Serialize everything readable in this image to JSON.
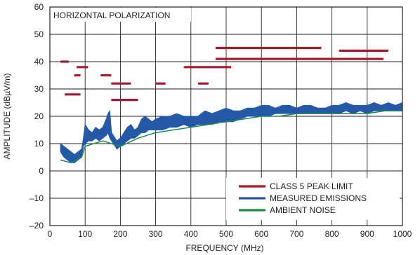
{
  "chart_data": {
    "type": "line",
    "title": "",
    "annotation": "HORIZONTAL POLARIZATION",
    "xlabel": "FREQUENCY (MHz)",
    "ylabel": "AMPLITUDE (dBµV/m)",
    "xlim": [
      0,
      1000
    ],
    "ylim": [
      -20,
      60
    ],
    "x_ticks": [
      0,
      100,
      200,
      300,
      400,
      500,
      600,
      700,
      800,
      900,
      1000
    ],
    "y_ticks": [
      -20,
      -10,
      0,
      10,
      20,
      30,
      40,
      50,
      60
    ],
    "x_tick_labels": [
      "0",
      "100",
      "200",
      "300",
      "400",
      "500",
      "600",
      "700",
      "800",
      "900",
      "1000"
    ],
    "y_tick_labels": [
      "–20",
      "–10",
      "0",
      "10",
      "20",
      "30",
      "40",
      "50",
      "60"
    ],
    "grid": true,
    "legend_position": "bottom-right",
    "colors": {
      "limit": "#a6192e",
      "emissions": "#2458a8",
      "noise": "#1e8a4a",
      "grid": "#231f20"
    },
    "legend": [
      {
        "label": "CLASS 5 PEAK LIMIT",
        "key": "limit"
      },
      {
        "label": "MEASURED EMISSIONS",
        "key": "emissions"
      },
      {
        "label": "AMBIENT NOISE",
        "key": "noise"
      }
    ],
    "limit_segments": [
      {
        "x": [
          30,
          54
        ],
        "y": 40
      },
      {
        "x": [
          42,
          87
        ],
        "y": 28
      },
      {
        "x": [
          69,
          87
        ],
        "y": 35
      },
      {
        "x": [
          76,
          108
        ],
        "y": 38
      },
      {
        "x": [
          144,
          174
        ],
        "y": 35
      },
      {
        "x": [
          174,
          230
        ],
        "y": 32
      },
      {
        "x": [
          174,
          250
        ],
        "y": 26
      },
      {
        "x": [
          300,
          328
        ],
        "y": 32
      },
      {
        "x": [
          380,
          514
        ],
        "y": 38
      },
      {
        "x": [
          420,
          450
        ],
        "y": 32
      },
      {
        "x": [
          470,
          770
        ],
        "y": 45
      },
      {
        "x": [
          470,
          946
        ],
        "y": 41
      },
      {
        "x": [
          820,
          960
        ],
        "y": 44
      }
    ],
    "emissions": {
      "x": [
        30,
        40,
        50,
        60,
        70,
        80,
        90,
        95,
        100,
        110,
        120,
        130,
        140,
        150,
        160,
        165,
        170,
        175,
        180,
        190,
        200,
        210,
        220,
        230,
        240,
        250,
        260,
        270,
        280,
        290,
        300,
        320,
        340,
        360,
        380,
        400,
        420,
        440,
        460,
        480,
        500,
        520,
        540,
        560,
        580,
        600,
        620,
        640,
        660,
        680,
        700,
        720,
        740,
        760,
        780,
        800,
        820,
        840,
        860,
        880,
        900,
        920,
        940,
        960,
        980,
        1000
      ],
      "low": [
        7,
        5,
        4,
        3,
        3,
        4,
        5,
        9,
        10,
        11,
        11,
        12,
        11,
        12,
        13,
        14,
        12,
        11,
        10,
        8,
        9,
        10,
        11,
        12,
        12,
        13,
        14,
        14,
        15,
        15,
        15,
        15,
        16,
        16,
        17,
        16,
        17,
        17,
        17,
        18,
        18,
        18,
        19,
        20,
        20,
        20,
        20,
        21,
        21,
        21,
        21,
        21,
        21,
        21,
        21,
        21,
        21,
        22,
        21,
        22,
        21,
        22,
        22,
        22,
        22,
        22
      ],
      "high": [
        10,
        9,
        8,
        7,
        6,
        7,
        8,
        12,
        17,
        15,
        14,
        16,
        15,
        16,
        19,
        21,
        22,
        14,
        13,
        11,
        12,
        14,
        16,
        17,
        15,
        16,
        19,
        20,
        19,
        18,
        19,
        20,
        20,
        21,
        20,
        20,
        20,
        22,
        21,
        22,
        23,
        22,
        22,
        23,
        23,
        24,
        24,
        23,
        24,
        24,
        23,
        24,
        24,
        23,
        23,
        24,
        24,
        25,
        24,
        24,
        24,
        25,
        24,
        25,
        24,
        25
      ]
    },
    "noise": {
      "x": [
        30,
        60,
        90,
        100,
        150,
        200,
        250,
        300,
        350,
        400,
        450,
        500,
        550,
        600,
        650,
        700,
        750,
        800,
        850,
        900,
        950,
        1000
      ],
      "y": [
        4,
        3,
        5,
        9,
        11,
        9,
        12,
        14,
        15,
        16,
        17,
        18,
        19,
        20,
        20,
        21,
        21,
        21,
        21,
        21,
        22,
        22
      ]
    }
  }
}
